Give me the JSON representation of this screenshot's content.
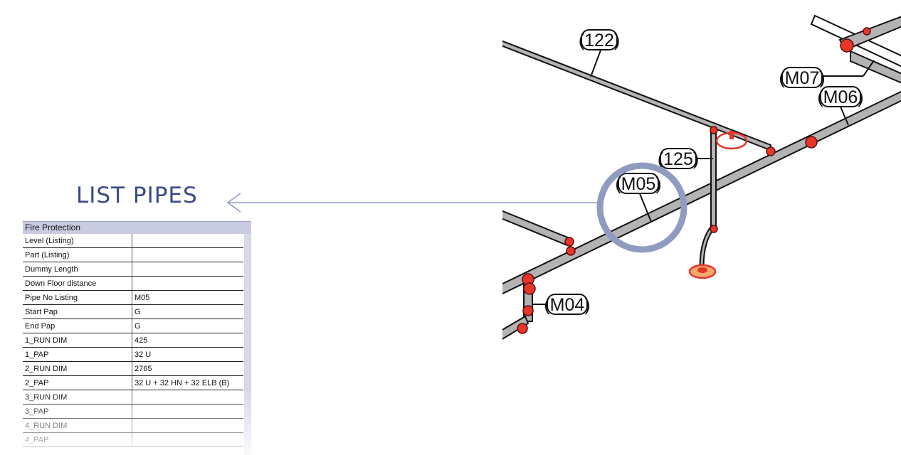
{
  "heading": "LIST PIPES",
  "panel": {
    "title": "Fire Protection",
    "rows": [
      {
        "key": "Level  (Listing)",
        "value": ""
      },
      {
        "key": "Part  (Listing)",
        "value": ""
      },
      {
        "key": "Dummy Length",
        "value": ""
      },
      {
        "key": "Down Floor distance",
        "value": ""
      },
      {
        "key": "Pipe No Listing",
        "value": "M05"
      },
      {
        "key": "Start Pap",
        "value": "G"
      },
      {
        "key": "End Pap",
        "value": "G"
      },
      {
        "key": "1_RUN DIM",
        "value": "425"
      },
      {
        "key": "1_PAP",
        "value": "32 U"
      },
      {
        "key": "2_RUN DIM",
        "value": "2765"
      },
      {
        "key": "2_PAP",
        "value": "32 U + 32 HN + 32 ELB (B)"
      },
      {
        "key": "3_RUN DIM",
        "value": ""
      },
      {
        "key": "3_PAP",
        "value": ""
      },
      {
        "key": "4_RUN DIM",
        "value": ""
      },
      {
        "key": "4_PAP",
        "value": ""
      }
    ]
  },
  "pipe_labels": {
    "p122": "(122)",
    "p125": "(125)",
    "m04": "(M04)",
    "m05": "(M05)",
    "m06": "(M06)",
    "m07": "(M07)"
  },
  "colors": {
    "accent": "#3a4a86",
    "highlight_circle": "#8f9bc0",
    "fitting": "#e8352a",
    "pipe_fill": "#b3b3b3"
  }
}
